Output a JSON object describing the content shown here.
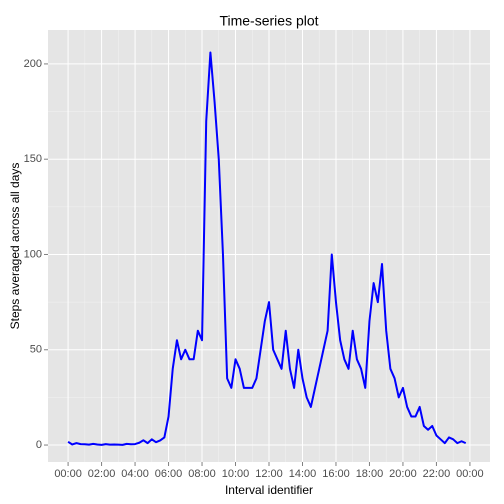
{
  "chart_data": {
    "type": "line",
    "title": "Time-series plot",
    "x_label": "Interval identifier",
    "y_label": "Steps averaged across all days",
    "x": [
      0,
      15,
      30,
      45,
      60,
      75,
      90,
      105,
      120,
      135,
      150,
      165,
      180,
      195,
      210,
      225,
      240,
      255,
      270,
      285,
      300,
      315,
      330,
      345,
      360,
      375,
      390,
      405,
      420,
      435,
      450,
      465,
      480,
      495,
      510,
      525,
      540,
      555,
      570,
      585,
      600,
      615,
      630,
      645,
      660,
      675,
      690,
      705,
      720,
      735,
      750,
      765,
      780,
      795,
      810,
      825,
      840,
      855,
      870,
      885,
      900,
      915,
      930,
      945,
      960,
      975,
      990,
      1005,
      1020,
      1035,
      1050,
      1065,
      1080,
      1095,
      1110,
      1125,
      1140,
      1155,
      1170,
      1185,
      1200,
      1215,
      1230,
      1245,
      1260,
      1275,
      1290,
      1305,
      1320,
      1335,
      1350,
      1365,
      1380,
      1395,
      1410,
      1425
    ],
    "series": [
      {
        "name": "steps",
        "color": "#0000ff",
        "values": [
          1.7,
          0.3,
          1.0,
          0.5,
          0.4,
          0.2,
          0.6,
          0.3,
          0.1,
          0.5,
          0.2,
          0.3,
          0.2,
          0.1,
          0.6,
          0.4,
          0.5,
          1.2,
          2.5,
          1.0,
          3.0,
          1.5,
          2.4,
          4.0,
          15,
          40,
          55,
          45,
          50,
          45,
          45,
          60,
          55,
          170,
          206,
          180,
          150,
          100,
          35,
          30,
          45,
          40,
          30,
          30,
          30,
          35,
          50,
          65,
          75,
          50,
          45,
          40,
          60,
          40,
          30,
          50,
          35,
          25,
          20,
          30,
          40,
          50,
          60,
          100,
          75,
          55,
          45,
          40,
          60,
          45,
          40,
          30,
          65,
          85,
          75,
          95,
          60,
          40,
          35,
          25,
          30,
          20,
          15,
          15,
          20,
          10,
          8,
          10,
          5,
          3,
          1,
          4,
          3,
          1,
          2,
          1
        ]
      }
    ],
    "xlim": [
      -72,
      1512
    ],
    "xticks": [
      {
        "value": 0,
        "label": "00:00"
      },
      {
        "value": 120,
        "label": "02:00"
      },
      {
        "value": 240,
        "label": "04:00"
      },
      {
        "value": 360,
        "label": "06:00"
      },
      {
        "value": 480,
        "label": "08:00"
      },
      {
        "value": 600,
        "label": "10:00"
      },
      {
        "value": 720,
        "label": "12:00"
      },
      {
        "value": 840,
        "label": "14:00"
      },
      {
        "value": 960,
        "label": "16:00"
      },
      {
        "value": 1080,
        "label": "18:00"
      },
      {
        "value": 1200,
        "label": "20:00"
      },
      {
        "value": 1320,
        "label": "22:00"
      },
      {
        "value": 1440,
        "label": "00:00"
      }
    ],
    "ylim": [
      -8.9,
      217.8
    ],
    "yticks": [
      0,
      50,
      100,
      150,
      200
    ],
    "grid": true
  }
}
